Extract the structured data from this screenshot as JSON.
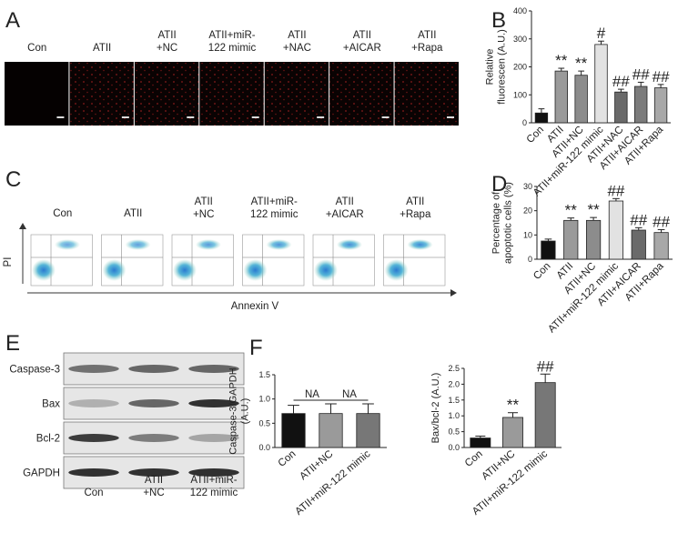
{
  "panels": {
    "A": {
      "letter": "A",
      "labels": [
        [
          "Con"
        ],
        [
          "ATII"
        ],
        [
          "ATII",
          "+NC"
        ],
        [
          "ATII+miR-",
          "122 mimic"
        ],
        [
          "ATII",
          "+NAC"
        ],
        [
          "ATII",
          "+AICAR"
        ],
        [
          "ATII",
          "+Rapa"
        ]
      ]
    },
    "C": {
      "letter": "C",
      "labels": [
        [
          "Con"
        ],
        [
          "ATII"
        ],
        [
          "ATII",
          "+NC"
        ],
        [
          "ATII+miR-",
          "122 mimic"
        ],
        [
          "ATII",
          "+AICAR"
        ],
        [
          "ATII",
          "+Rapa"
        ]
      ],
      "y_label": "PI",
      "x_label": "Annexin V"
    },
    "E": {
      "letter": "E",
      "rows": [
        "Caspase-3",
        "Bax",
        "Bcl-2",
        "GAPDH"
      ],
      "lanes": [
        [
          "Con"
        ],
        [
          "ATII",
          "+NC"
        ],
        [
          "ATII+miR-",
          "122 mimic"
        ]
      ]
    },
    "F": {
      "letter": "F"
    }
  },
  "chart_data": [
    {
      "type": "bar",
      "panel": "B",
      "y_label": [
        "Relative",
        "fluorescen (A.U.)"
      ],
      "categories": [
        "Con",
        "ATII",
        "ATII+NC",
        "ATII+miR-122 mimic",
        "ATII+NAC",
        "ATII+AICAR",
        "ATII+Rapa"
      ],
      "values": [
        35,
        185,
        170,
        280,
        110,
        130,
        125
      ],
      "errors": [
        15,
        10,
        15,
        12,
        10,
        15,
        12
      ],
      "colors": [
        "#111111",
        "#9a9a9a",
        "#8c8c8c",
        "#e2e2e2",
        "#6a6a6a",
        "#7c7c7c",
        "#a8a8a8"
      ],
      "annotations": [
        null,
        "**",
        "**",
        "#",
        "##",
        "##",
        "##"
      ],
      "ylim": [
        0,
        400
      ],
      "yticks": [
        0,
        100,
        200,
        300,
        400
      ]
    },
    {
      "type": "bar",
      "panel": "D",
      "y_label": [
        "Percentage of",
        "apoptotic cells (%)"
      ],
      "categories": [
        "Con",
        "ATII",
        "ATII+NC",
        "ATII+miR-122 mimic",
        "ATII+AICAR",
        "ATII+Rapa"
      ],
      "values": [
        7.5,
        16,
        16,
        24,
        12,
        11
      ],
      "errors": [
        0.8,
        1,
        1.2,
        1,
        1,
        1.2
      ],
      "colors": [
        "#111111",
        "#9a9a9a",
        "#8c8c8c",
        "#e2e2e2",
        "#6a6a6a",
        "#a8a8a8"
      ],
      "annotations": [
        null,
        "**",
        "**",
        "##",
        "##",
        "##"
      ],
      "ylim": [
        0,
        30
      ],
      "yticks": [
        0,
        10,
        20,
        30
      ]
    },
    {
      "type": "bar",
      "y_label": [
        "Caspase-3/GAPDH",
        "(A.U.)"
      ],
      "categories": [
        "Con",
        "ATII+NC",
        "ATII+miR-122 mimic"
      ],
      "values": [
        0.7,
        0.7,
        0.7
      ],
      "errors": [
        0.17,
        0.2,
        0.2
      ],
      "colors": [
        "#111111",
        "#9a9a9a",
        "#777777"
      ],
      "bracket_labels": [
        "NA",
        "NA"
      ],
      "ylim": [
        0,
        1.5
      ],
      "yticks": [
        {
          "value": 0,
          "label": "0.0"
        },
        {
          "value": 0.5,
          "label": "0.5"
        },
        {
          "value": 1,
          "label": "1.0"
        },
        {
          "value": 1.5,
          "label": "1.5"
        }
      ]
    },
    {
      "type": "bar",
      "y_label": [
        "Bax/bcl-2 (A.U.)"
      ],
      "categories": [
        "Con",
        "ATII+NC",
        "ATII+miR-122 mimic"
      ],
      "values": [
        0.3,
        0.95,
        2.05
      ],
      "errors": [
        0.06,
        0.15,
        0.27
      ],
      "colors": [
        "#111111",
        "#9a9a9a",
        "#777777"
      ],
      "annotations": [
        null,
        "**",
        "##"
      ],
      "ylim": [
        0,
        2.5
      ],
      "yticks": [
        {
          "value": 0,
          "label": "0.0"
        },
        {
          "value": 0.5,
          "label": "0.5"
        },
        {
          "value": 1,
          "label": "1.0"
        },
        {
          "value": 1.5,
          "label": "1.5"
        },
        {
          "value": 2,
          "label": "2.0"
        },
        {
          "value": 2.5,
          "label": "2.5"
        }
      ]
    }
  ]
}
